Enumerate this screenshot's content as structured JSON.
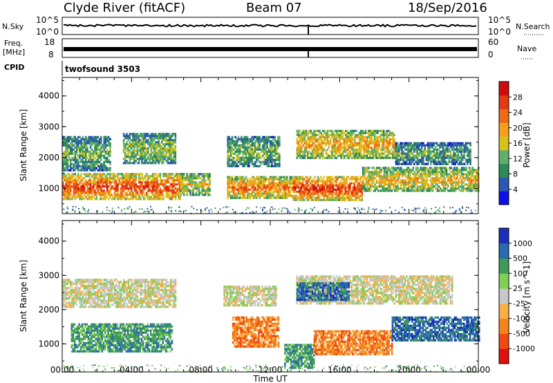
{
  "header": {
    "station": "Clyde River (fitACF)",
    "beam": "Beam 07",
    "date": "18/Sep/2016"
  },
  "strips": {
    "nsky_label": "N.Sky",
    "nsky_ticks": [
      "10^5",
      "10^0"
    ],
    "nsearch_label": "N.Search",
    "nsearch_ticks": [
      "10^5",
      "10^0"
    ],
    "freq_label_1": "Freq.",
    "freq_label_2": "[MHz]",
    "freq_ticks": [
      "18",
      "8"
    ],
    "nave_label": "Nave",
    "nave_ticks": [
      "60",
      "0"
    ],
    "cpid_label": "CPID",
    "cpid_value": "twofsound 3503"
  },
  "chart_data": [
    {
      "type": "heatmap",
      "title": "",
      "xlabel": "Time UT",
      "ylabel": "Slant Range [km]",
      "xlim": [
        0,
        24
      ],
      "ylim": [
        180,
        4600
      ],
      "x_ticks": [
        "00:00",
        "04:00",
        "08:00",
        "12:00",
        "16:00",
        "20:00",
        "00:00"
      ],
      "y_ticks": [
        1000,
        2000,
        3000,
        4000
      ],
      "colorbar": {
        "label": "Power [dB]",
        "ticks": [
          "28",
          "24",
          "20",
          "16",
          "12",
          "8",
          "4"
        ],
        "colors": [
          "#1010e6",
          "#2d57b4",
          "#2e8b57",
          "#5fb16a",
          "#d6c41a",
          "#f5a01a",
          "#ef6a16",
          "#e03b12",
          "#d10a0a"
        ]
      },
      "bands": [
        {
          "t0": 0.0,
          "t1": 6.8,
          "r0": 650,
          "r1": 1500,
          "level": 0.8
        },
        {
          "t0": 6.8,
          "t1": 8.5,
          "r0": 800,
          "r1": 1500,
          "level": 0.5
        },
        {
          "t0": 9.5,
          "t1": 13.3,
          "r0": 700,
          "r1": 1400,
          "level": 0.7
        },
        {
          "t0": 13.3,
          "t1": 17.3,
          "r0": 650,
          "r1": 1400,
          "level": 0.85
        },
        {
          "t0": 17.3,
          "t1": 24.0,
          "r0": 900,
          "r1": 1700,
          "level": 0.55
        },
        {
          "t0": 0.0,
          "t1": 2.8,
          "r0": 1600,
          "r1": 2700,
          "level": 0.35
        },
        {
          "t0": 3.5,
          "t1": 6.5,
          "r0": 1800,
          "r1": 2800,
          "level": 0.4
        },
        {
          "t0": 9.5,
          "t1": 12.5,
          "r0": 1700,
          "r1": 2700,
          "level": 0.35
        },
        {
          "t0": 13.5,
          "t1": 19.2,
          "r0": 2000,
          "r1": 2900,
          "level": 0.6
        },
        {
          "t0": 19.2,
          "t1": 23.5,
          "r0": 1800,
          "r1": 2500,
          "level": 0.3
        }
      ]
    },
    {
      "type": "heatmap",
      "title": "",
      "xlabel": "Time UT",
      "ylabel": "Slant Range [km]",
      "xlim": [
        0,
        24
      ],
      "ylim": [
        180,
        4600
      ],
      "x_ticks": [
        "00:00",
        "04:00",
        "08:00",
        "12:00",
        "16:00",
        "20:00",
        "00:00"
      ],
      "y_ticks": [
        1000,
        2000,
        3000,
        4000
      ],
      "colorbar": {
        "label": "Velocity [m s^-1]",
        "ticks": [
          "1000",
          "500",
          "100",
          "25",
          "-25",
          "-100",
          "-500",
          "-1000"
        ],
        "colors": [
          "#e0100e",
          "#ef4a14",
          "#f5841c",
          "#f7b046",
          "#c8c8c8",
          "#7fd055",
          "#3f9a5a",
          "#2a6ab0",
          "#1a30b8"
        ]
      },
      "bands": [
        {
          "t0": 0.0,
          "t1": 6.5,
          "r0": 2100,
          "r1": 2900,
          "level": 4
        },
        {
          "t0": 9.3,
          "t1": 12.3,
          "r0": 2100,
          "r1": 2700,
          "level": 4
        },
        {
          "t0": 13.5,
          "t1": 22.5,
          "r0": 2200,
          "r1": 3000,
          "level": 4
        },
        {
          "t0": 0.5,
          "t1": 6.3,
          "r0": 800,
          "r1": 1600,
          "level": 6
        },
        {
          "t0": 9.8,
          "t1": 12.5,
          "r0": 900,
          "r1": 1800,
          "level": 2
        },
        {
          "t0": 12.8,
          "t1": 14.5,
          "r0": 300,
          "r1": 1000,
          "level": 6
        },
        {
          "t0": 14.5,
          "t1": 19.0,
          "r0": 700,
          "r1": 1400,
          "level": 2
        },
        {
          "t0": 19.0,
          "t1": 24.0,
          "r0": 1100,
          "r1": 1800,
          "level": 7
        },
        {
          "t0": 13.5,
          "t1": 16.5,
          "r0": 2300,
          "r1": 2800,
          "level": 7
        }
      ]
    }
  ]
}
